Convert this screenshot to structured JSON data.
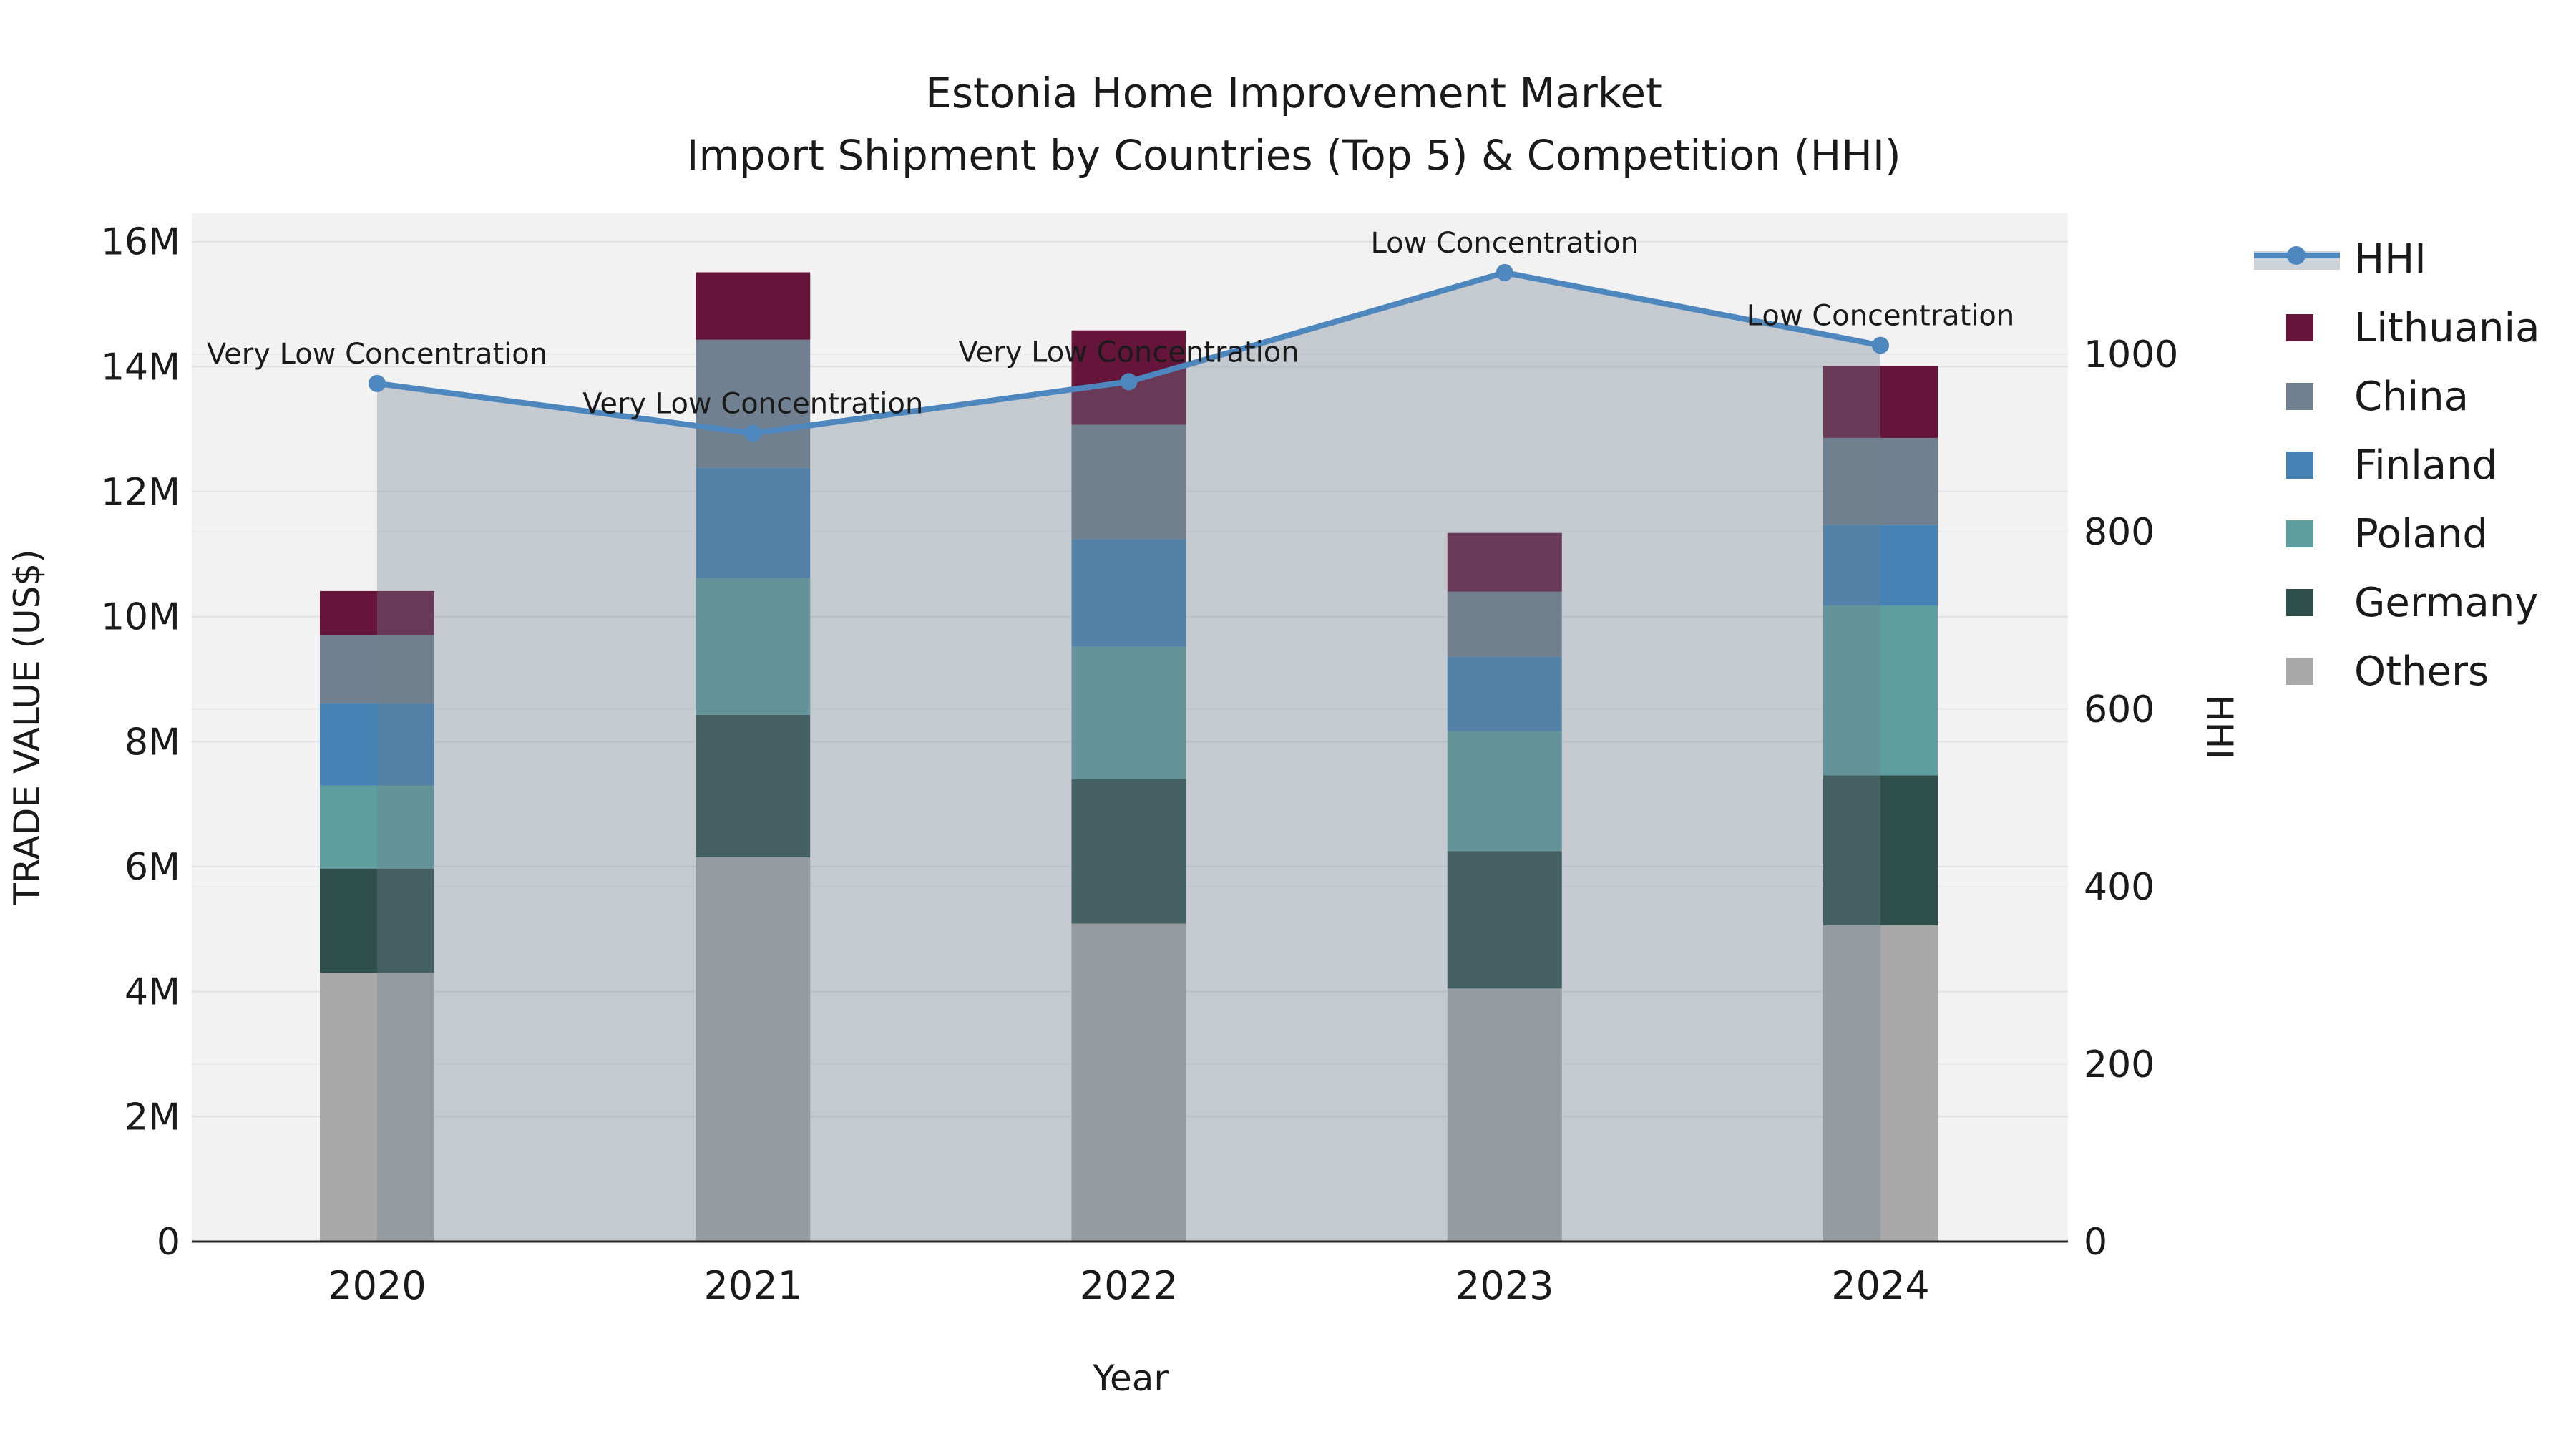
{
  "title": {
    "line1": "Estonia Home Improvement Market",
    "line2": "Import Shipment by Countries (Top 5) & Competition (HHI)"
  },
  "chart_data": {
    "type": "bar",
    "subtype": "stacked-bars-with-line-overlay",
    "categories": [
      "2020",
      "2021",
      "2022",
      "2023",
      "2024"
    ],
    "series": [
      {
        "name": "Others",
        "color": "#A9A9A9",
        "values": [
          4.3,
          6.15,
          5.09,
          4.05,
          5.06
        ]
      },
      {
        "name": "Germany",
        "color": "#2F4F4C",
        "values": [
          1.67,
          2.28,
          2.31,
          2.2,
          2.4
        ]
      },
      {
        "name": "Poland",
        "color": "#5F9EA0",
        "values": [
          1.33,
          2.18,
          2.12,
          1.92,
          2.72
        ]
      },
      {
        "name": "Finland",
        "color": "#4682B4",
        "values": [
          1.31,
          1.77,
          1.72,
          1.19,
          1.29
        ]
      },
      {
        "name": "China",
        "color": "#708090",
        "values": [
          1.09,
          2.05,
          1.83,
          1.04,
          1.39
        ]
      },
      {
        "name": "Lithuania",
        "color": "#641539",
        "values": [
          0.71,
          1.08,
          1.51,
          0.94,
          1.15
        ]
      }
    ],
    "bar_totals_musd": [
      10.41,
      15.51,
      14.58,
      11.34,
      14.01
    ],
    "line_series": {
      "name": "HHI",
      "color": "#4D87BE",
      "area_fill": "rgba(112,128,144,0.35)",
      "values": [
        967,
        911,
        969,
        1092,
        1010
      ]
    },
    "annotations": [
      "Very Low Concentration",
      "Very Low Concentration",
      "Very Low Concentration",
      "Low Concentration",
      "Low Concentration"
    ],
    "left_axis": {
      "label": "TRADE VALUE (US$)",
      "tick_labels": [
        "0",
        "2M",
        "4M",
        "6M",
        "8M",
        "10M",
        "12M",
        "14M",
        "16M"
      ],
      "tick_values": [
        0,
        2,
        4,
        6,
        8,
        10,
        12,
        14,
        16
      ],
      "range_musd": [
        0,
        16.5
      ]
    },
    "right_axis": {
      "label": "HHI",
      "tick_labels": [
        "0",
        "200",
        "400",
        "600",
        "800",
        "1000"
      ],
      "tick_values": [
        0,
        200,
        400,
        600,
        800,
        1000
      ],
      "range": [
        0,
        1160
      ]
    },
    "x_axis": {
      "label": "Year"
    },
    "plot_background": "#f2f2f3",
    "grid": true,
    "legend_position": "right"
  },
  "legend": {
    "items": [
      {
        "label": "HHI",
        "type": "line",
        "color": "#4D87BE"
      },
      {
        "label": "Lithuania",
        "type": "swatch",
        "color": "#641539"
      },
      {
        "label": "China",
        "type": "swatch",
        "color": "#708090"
      },
      {
        "label": "Finland",
        "type": "swatch",
        "color": "#4682B4"
      },
      {
        "label": "Poland",
        "type": "swatch",
        "color": "#5F9EA0"
      },
      {
        "label": "Germany",
        "type": "swatch",
        "color": "#2F4F4C"
      },
      {
        "label": "Others",
        "type": "swatch",
        "color": "#A9A9A9"
      }
    ]
  }
}
